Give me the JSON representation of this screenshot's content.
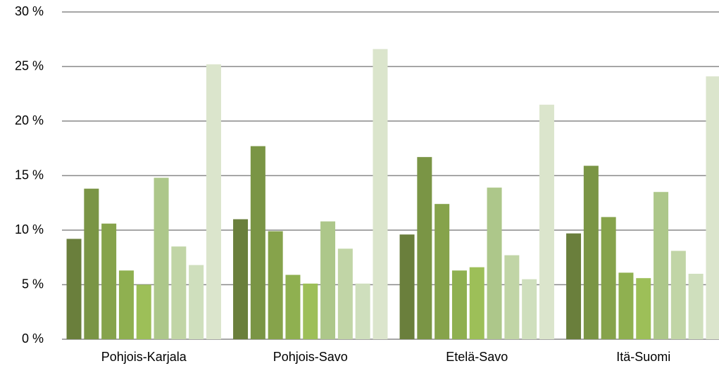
{
  "chart_data": {
    "type": "bar",
    "categories": [
      "Pohjois-Karjala",
      "Pohjois-Savo",
      "Etelä-Savo",
      "Itä-Suomi"
    ],
    "series": [
      {
        "color": "#6a7f3c",
        "values": [
          9.2,
          11.0,
          9.6,
          9.7
        ]
      },
      {
        "color": "#7a9545",
        "values": [
          13.8,
          17.7,
          16.7,
          15.9
        ]
      },
      {
        "color": "#86a34b",
        "values": [
          10.6,
          9.9,
          12.4,
          11.2
        ]
      },
      {
        "color": "#8fb050",
        "values": [
          6.3,
          5.9,
          6.3,
          6.1
        ]
      },
      {
        "color": "#9dbf58",
        "values": [
          5.0,
          5.1,
          6.6,
          5.6
        ]
      },
      {
        "color": "#adc78a",
        "values": [
          14.8,
          10.8,
          13.9,
          13.5
        ]
      },
      {
        "color": "#c1d5a6",
        "values": [
          8.5,
          8.3,
          7.7,
          8.1
        ]
      },
      {
        "color": "#cfdfbd",
        "values": [
          6.8,
          5.1,
          5.5,
          6.0
        ]
      },
      {
        "color": "#dbe5cc",
        "values": [
          25.2,
          26.6,
          21.5,
          24.1
        ]
      }
    ],
    "ylim": [
      0,
      30
    ],
    "yticks": [
      {
        "value": 0,
        "label": "0 %"
      },
      {
        "value": 5,
        "label": "5 %"
      },
      {
        "value": 10,
        "label": "10 %"
      },
      {
        "value": 15,
        "label": "15 %"
      },
      {
        "value": 20,
        "label": "20 %"
      },
      {
        "value": 25,
        "label": "25 %"
      },
      {
        "value": 30,
        "label": "30 %"
      }
    ],
    "grid": true
  }
}
